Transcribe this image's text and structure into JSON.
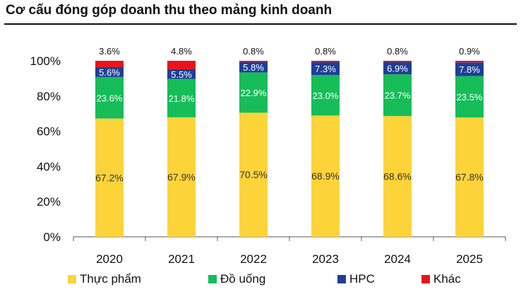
{
  "chart_data": {
    "type": "bar",
    "stacked": true,
    "title": "Cơ cấu đóng góp doanh thu theo mảng kinh doanh",
    "xlabel": "",
    "ylabel": "",
    "categories": [
      "2020",
      "2021",
      "2022",
      "2023",
      "2024",
      "2025"
    ],
    "ylim": [
      0,
      100
    ],
    "yticks": [
      0,
      20,
      40,
      60,
      80,
      100
    ],
    "ytick_labels": [
      "0%",
      "20%",
      "40%",
      "60%",
      "80%",
      "100%"
    ],
    "grid": false,
    "legend_position": "bottom",
    "series": [
      {
        "name": "Thực phẩm",
        "color": "#FDD33A",
        "values": [
          67.2,
          67.9,
          70.5,
          68.9,
          68.6,
          67.8
        ],
        "labels": [
          "67.2%",
          "67.9%",
          "70.5%",
          "68.9%",
          "68.6%",
          "67.8%"
        ],
        "label_color": "#333333"
      },
      {
        "name": "Đồ uống",
        "color": "#16BD59",
        "values": [
          23.6,
          21.8,
          22.9,
          23.0,
          23.7,
          23.5
        ],
        "labels": [
          "23.6%",
          "21.8%",
          "22.9%",
          "23.0%",
          "23.7%",
          "23.5%"
        ],
        "label_color": "#ffffff"
      },
      {
        "name": "HPC",
        "color": "#1E3F96",
        "values": [
          5.6,
          5.5,
          5.8,
          7.3,
          6.9,
          7.8
        ],
        "labels": [
          "5.6%",
          "5.5%",
          "5.8%",
          "7.3%",
          "6.9%",
          "7.8%"
        ],
        "label_color": "#ffffff"
      },
      {
        "name": "Khác",
        "color": "#E8141B",
        "values": [
          3.6,
          4.8,
          0.8,
          0.8,
          0.8,
          0.9
        ],
        "labels": [
          "3.6%",
          "4.8%",
          "0.8%",
          "0.8%",
          "0.8%",
          "0.9%"
        ],
        "label_color": "#111111"
      }
    ]
  }
}
